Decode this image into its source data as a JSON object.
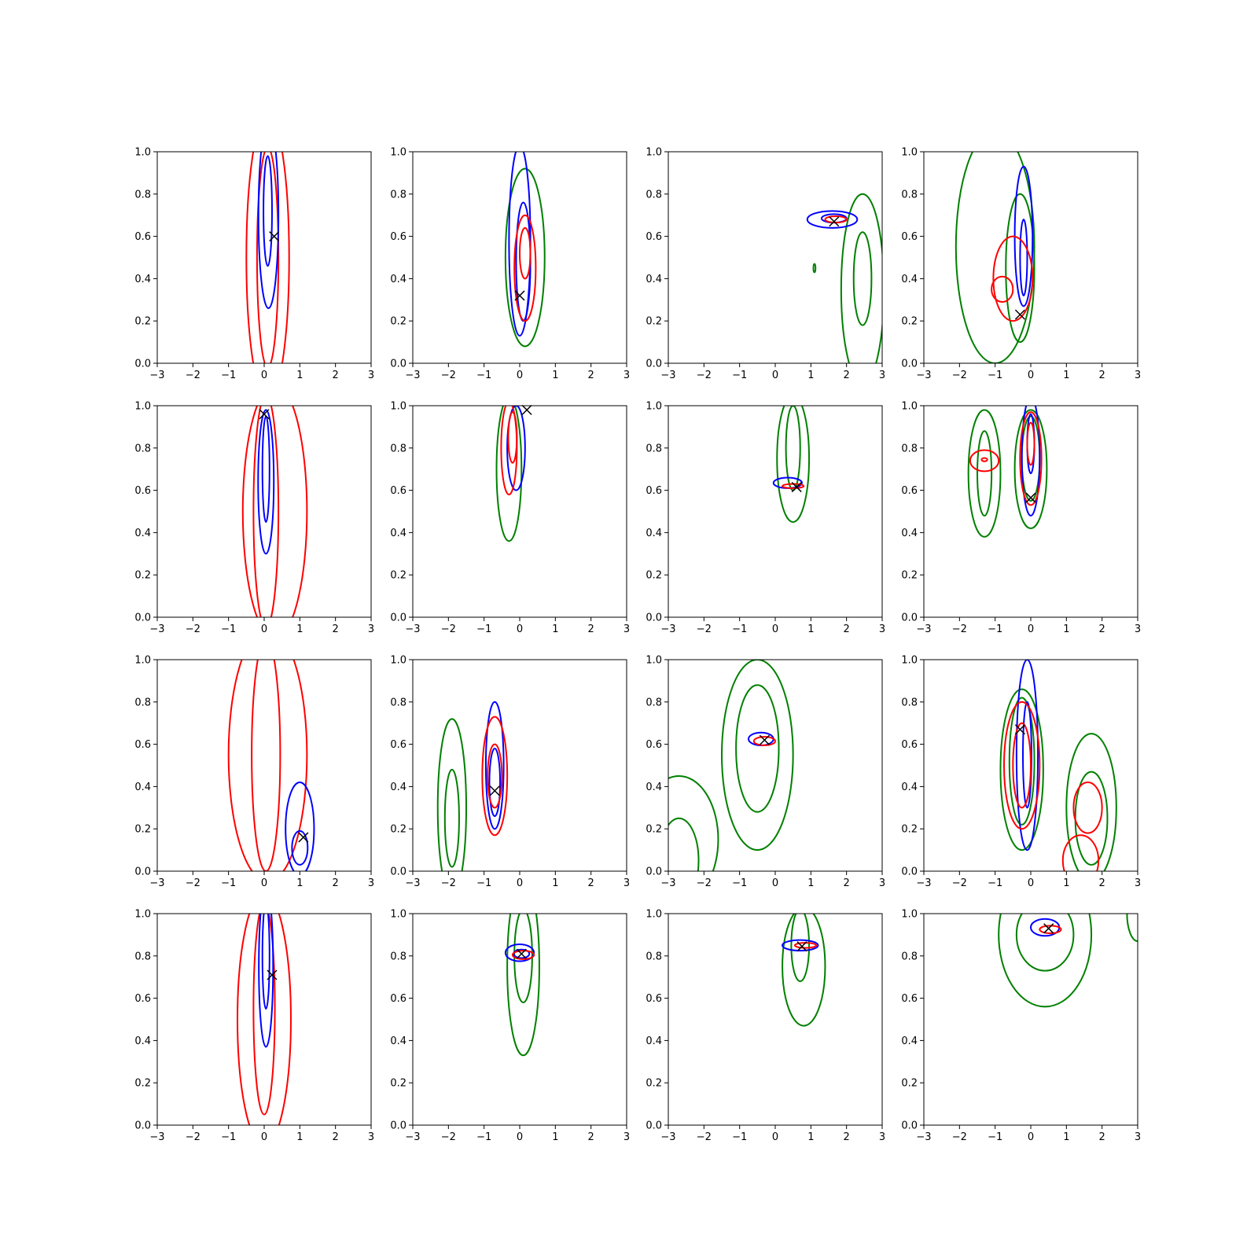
{
  "chart_data": {
    "type": "contour",
    "layout": {
      "rows": 4,
      "cols": 4
    },
    "xlim": [
      -3,
      3
    ],
    "ylim": [
      0,
      1
    ],
    "xticks": [
      "−3",
      "−2",
      "−1",
      "0",
      "1",
      "2",
      "3"
    ],
    "yticks": [
      "0.0",
      "0.2",
      "0.4",
      "0.6",
      "0.8",
      "1.0"
    ],
    "colors": {
      "red": "#ff0000",
      "blue": "#0000ff",
      "green": "#008000",
      "marker": "#000000"
    },
    "panels": [
      {
        "marker": [
          0.28,
          0.6
        ],
        "contours": [
          {
            "color": "red",
            "cx": 0.1,
            "cy": 0.5,
            "rx": 0.6,
            "ry": 0.68
          },
          {
            "color": "red",
            "cx": 0.1,
            "cy": 0.5,
            "rx": 0.3,
            "ry": 0.52
          },
          {
            "color": "blue",
            "cx": 0.12,
            "cy": 0.7,
            "rx": 0.28,
            "ry": 0.44
          },
          {
            "color": "blue",
            "cx": 0.1,
            "cy": 0.72,
            "rx": 0.12,
            "ry": 0.26
          }
        ]
      },
      {
        "marker": [
          0.0,
          0.32
        ],
        "contours": [
          {
            "color": "green",
            "cx": 0.15,
            "cy": 0.5,
            "rx": 0.55,
            "ry": 0.42
          },
          {
            "color": "blue",
            "cx": 0.0,
            "cy": 0.58,
            "rx": 0.3,
            "ry": 0.45
          },
          {
            "color": "blue",
            "cx": 0.1,
            "cy": 0.48,
            "rx": 0.2,
            "ry": 0.28
          },
          {
            "color": "red",
            "cx": 0.15,
            "cy": 0.45,
            "rx": 0.3,
            "ry": 0.25
          },
          {
            "color": "red",
            "cx": 0.15,
            "cy": 0.52,
            "rx": 0.15,
            "ry": 0.12
          }
        ]
      },
      {
        "marker": [
          1.65,
          0.67
        ],
        "contours": [
          {
            "color": "green",
            "cx": 2.45,
            "cy": 0.35,
            "rx": 0.6,
            "ry": 0.45
          },
          {
            "color": "green",
            "cx": 2.45,
            "cy": 0.4,
            "rx": 0.25,
            "ry": 0.22
          },
          {
            "color": "green",
            "cx": 1.1,
            "cy": 0.45,
            "rx": 0.03,
            "ry": 0.02
          },
          {
            "color": "blue",
            "cx": 1.6,
            "cy": 0.68,
            "rx": 0.7,
            "ry": 0.04
          },
          {
            "color": "blue",
            "cx": 1.65,
            "cy": 0.685,
            "rx": 0.35,
            "ry": 0.02
          },
          {
            "color": "red",
            "cx": 1.7,
            "cy": 0.68,
            "rx": 0.3,
            "ry": 0.015
          }
        ]
      },
      {
        "marker": [
          -0.3,
          0.23
        ],
        "contours": [
          {
            "color": "green",
            "cx": -1.0,
            "cy": 0.55,
            "rx": 1.1,
            "ry": 0.55
          },
          {
            "color": "green",
            "cx": -0.3,
            "cy": 0.45,
            "rx": 0.4,
            "ry": 0.35
          },
          {
            "color": "blue",
            "cx": -0.2,
            "cy": 0.6,
            "rx": 0.25,
            "ry": 0.33
          },
          {
            "color": "blue",
            "cx": -0.2,
            "cy": 0.5,
            "rx": 0.1,
            "ry": 0.18
          },
          {
            "color": "red",
            "cx": -0.5,
            "cy": 0.4,
            "rx": 0.55,
            "ry": 0.2
          },
          {
            "color": "red",
            "cx": -0.8,
            "cy": 0.35,
            "rx": 0.3,
            "ry": 0.06
          }
        ]
      },
      {
        "marker": [
          0.0,
          0.96
        ],
        "contours": [
          {
            "color": "red",
            "cx": 0.3,
            "cy": 0.5,
            "rx": 0.9,
            "ry": 0.6
          },
          {
            "color": "red",
            "cx": 0.05,
            "cy": 0.5,
            "rx": 0.35,
            "ry": 0.55
          },
          {
            "color": "blue",
            "cx": 0.05,
            "cy": 0.64,
            "rx": 0.22,
            "ry": 0.34
          },
          {
            "color": "blue",
            "cx": 0.05,
            "cy": 0.7,
            "rx": 0.1,
            "ry": 0.25
          }
        ]
      },
      {
        "marker": [
          0.2,
          0.98
        ],
        "contours": [
          {
            "color": "green",
            "cx": -0.3,
            "cy": 0.7,
            "rx": 0.35,
            "ry": 0.34
          },
          {
            "color": "blue",
            "cx": -0.1,
            "cy": 0.8,
            "rx": 0.25,
            "ry": 0.2
          },
          {
            "color": "red",
            "cx": -0.3,
            "cy": 0.8,
            "rx": 0.22,
            "ry": 0.22
          },
          {
            "color": "red",
            "cx": -0.2,
            "cy": 0.85,
            "rx": 0.12,
            "ry": 0.12
          }
        ]
      },
      {
        "marker": [
          0.6,
          0.615
        ],
        "contours": [
          {
            "color": "green",
            "cx": 0.5,
            "cy": 0.75,
            "rx": 0.45,
            "ry": 0.3
          },
          {
            "color": "green",
            "cx": 0.5,
            "cy": 0.8,
            "rx": 0.2,
            "ry": 0.2
          },
          {
            "color": "blue",
            "cx": 0.35,
            "cy": 0.635,
            "rx": 0.4,
            "ry": 0.025
          },
          {
            "color": "red",
            "cx": 0.5,
            "cy": 0.62,
            "rx": 0.3,
            "ry": 0.01
          }
        ]
      },
      {
        "marker": [
          0.0,
          0.565
        ],
        "contours": [
          {
            "color": "green",
            "cx": -1.3,
            "cy": 0.68,
            "rx": 0.45,
            "ry": 0.3
          },
          {
            "color": "green",
            "cx": -1.3,
            "cy": 0.68,
            "rx": 0.2,
            "ry": 0.2
          },
          {
            "color": "green",
            "cx": 0.0,
            "cy": 0.7,
            "rx": 0.45,
            "ry": 0.28
          },
          {
            "color": "green",
            "cx": 0.0,
            "cy": 0.75,
            "rx": 0.25,
            "ry": 0.2
          },
          {
            "color": "blue",
            "cx": 0.0,
            "cy": 0.76,
            "rx": 0.25,
            "ry": 0.28
          },
          {
            "color": "blue",
            "cx": 0.0,
            "cy": 0.82,
            "rx": 0.1,
            "ry": 0.14
          },
          {
            "color": "red",
            "cx": 0.0,
            "cy": 0.75,
            "rx": 0.3,
            "ry": 0.22
          },
          {
            "color": "red",
            "cx": 0.0,
            "cy": 0.82,
            "rx": 0.1,
            "ry": 0.1
          },
          {
            "color": "red",
            "cx": -1.3,
            "cy": 0.74,
            "rx": 0.4,
            "ry": 0.05
          },
          {
            "color": "red",
            "cx": -1.3,
            "cy": 0.745,
            "rx": 0.08,
            "ry": 0.008
          }
        ]
      },
      {
        "marker": [
          1.1,
          0.16
        ],
        "contours": [
          {
            "color": "red",
            "cx": 0.1,
            "cy": 0.55,
            "rx": 1.1,
            "ry": 0.6
          },
          {
            "color": "red",
            "cx": 0.05,
            "cy": 0.55,
            "rx": 0.4,
            "ry": 0.55
          },
          {
            "color": "blue",
            "cx": 1.0,
            "cy": 0.2,
            "rx": 0.4,
            "ry": 0.22
          },
          {
            "color": "blue",
            "cx": 1.0,
            "cy": 0.11,
            "rx": 0.22,
            "ry": 0.08
          }
        ]
      },
      {
        "marker": [
          -0.7,
          0.38
        ],
        "contours": [
          {
            "color": "green",
            "cx": -1.9,
            "cy": 0.3,
            "rx": 0.4,
            "ry": 0.42
          },
          {
            "color": "green",
            "cx": -1.9,
            "cy": 0.25,
            "rx": 0.2,
            "ry": 0.23
          },
          {
            "color": "blue",
            "cx": -0.7,
            "cy": 0.5,
            "rx": 0.25,
            "ry": 0.3
          },
          {
            "color": "blue",
            "cx": -0.7,
            "cy": 0.42,
            "rx": 0.15,
            "ry": 0.16
          },
          {
            "color": "red",
            "cx": -0.7,
            "cy": 0.45,
            "rx": 0.35,
            "ry": 0.28
          },
          {
            "color": "red",
            "cx": -0.7,
            "cy": 0.45,
            "rx": 0.2,
            "ry": 0.15
          }
        ]
      },
      {
        "marker": [
          -0.3,
          0.62
        ],
        "contours": [
          {
            "color": "green",
            "cx": -0.5,
            "cy": 0.55,
            "rx": 1.0,
            "ry": 0.45
          },
          {
            "color": "green",
            "cx": -0.5,
            "cy": 0.58,
            "rx": 0.6,
            "ry": 0.3
          },
          {
            "color": "green",
            "cx": -2.7,
            "cy": 0.15,
            "rx": 1.1,
            "ry": 0.3
          },
          {
            "color": "green",
            "cx": -2.7,
            "cy": 0.05,
            "rx": 0.55,
            "ry": 0.2
          },
          {
            "color": "blue",
            "cx": -0.4,
            "cy": 0.625,
            "rx": 0.35,
            "ry": 0.03
          },
          {
            "color": "red",
            "cx": -0.3,
            "cy": 0.615,
            "rx": 0.3,
            "ry": 0.02
          }
        ]
      },
      {
        "marker": [
          -0.3,
          0.67
        ],
        "contours": [
          {
            "color": "green",
            "cx": -0.25,
            "cy": 0.48,
            "rx": 0.6,
            "ry": 0.38
          },
          {
            "color": "green",
            "cx": -0.25,
            "cy": 0.52,
            "rx": 0.35,
            "ry": 0.3
          },
          {
            "color": "green",
            "cx": 1.7,
            "cy": 0.3,
            "rx": 0.7,
            "ry": 0.35
          },
          {
            "color": "green",
            "cx": 1.7,
            "cy": 0.25,
            "rx": 0.45,
            "ry": 0.22
          },
          {
            "color": "blue",
            "cx": -0.1,
            "cy": 0.55,
            "rx": 0.3,
            "ry": 0.45
          },
          {
            "color": "blue",
            "cx": -0.1,
            "cy": 0.55,
            "rx": 0.12,
            "ry": 0.25
          },
          {
            "color": "red",
            "cx": -0.25,
            "cy": 0.5,
            "rx": 0.5,
            "ry": 0.3
          },
          {
            "color": "red",
            "cx": -0.25,
            "cy": 0.5,
            "rx": 0.25,
            "ry": 0.2
          },
          {
            "color": "red",
            "cx": 1.6,
            "cy": 0.3,
            "rx": 0.4,
            "ry": 0.12
          },
          {
            "color": "red",
            "cx": 1.4,
            "cy": 0.05,
            "rx": 0.5,
            "ry": 0.12
          }
        ]
      },
      {
        "marker": [
          0.22,
          0.71
        ],
        "contours": [
          {
            "color": "red",
            "cx": 0.0,
            "cy": 0.5,
            "rx": 0.75,
            "ry": 0.6
          },
          {
            "color": "red",
            "cx": 0.0,
            "cy": 0.55,
            "rx": 0.3,
            "ry": 0.5
          },
          {
            "color": "blue",
            "cx": 0.05,
            "cy": 0.75,
            "rx": 0.2,
            "ry": 0.38
          },
          {
            "color": "blue",
            "cx": 0.05,
            "cy": 0.8,
            "rx": 0.1,
            "ry": 0.25
          }
        ]
      },
      {
        "marker": [
          0.05,
          0.81
        ],
        "contours": [
          {
            "color": "green",
            "cx": 0.1,
            "cy": 0.75,
            "rx": 0.45,
            "ry": 0.42
          },
          {
            "color": "green",
            "cx": 0.1,
            "cy": 0.8,
            "rx": 0.25,
            "ry": 0.22
          },
          {
            "color": "blue",
            "cx": 0.0,
            "cy": 0.815,
            "rx": 0.4,
            "ry": 0.04
          },
          {
            "color": "blue",
            "cx": 0.05,
            "cy": 0.81,
            "rx": 0.22,
            "ry": 0.02
          },
          {
            "color": "red",
            "cx": 0.1,
            "cy": 0.805,
            "rx": 0.3,
            "ry": 0.02
          }
        ]
      },
      {
        "marker": [
          0.75,
          0.845
        ],
        "contours": [
          {
            "color": "green",
            "cx": 0.8,
            "cy": 0.75,
            "rx": 0.6,
            "ry": 0.28
          },
          {
            "color": "green",
            "cx": 0.7,
            "cy": 0.85,
            "rx": 0.25,
            "ry": 0.17
          },
          {
            "color": "blue",
            "cx": 0.7,
            "cy": 0.85,
            "rx": 0.5,
            "ry": 0.025
          },
          {
            "color": "red",
            "cx": 0.85,
            "cy": 0.85,
            "rx": 0.3,
            "ry": 0.012
          }
        ]
      },
      {
        "marker": [
          0.5,
          0.93
        ],
        "contours": [
          {
            "color": "green",
            "cx": 0.4,
            "cy": 0.9,
            "rx": 1.3,
            "ry": 0.34
          },
          {
            "color": "green",
            "cx": 0.4,
            "cy": 0.9,
            "rx": 0.8,
            "ry": 0.17
          },
          {
            "color": "green",
            "cx": 3.0,
            "cy": 1.0,
            "rx": 0.3,
            "ry": 0.13
          },
          {
            "color": "blue",
            "cx": 0.4,
            "cy": 0.935,
            "rx": 0.4,
            "ry": 0.04
          },
          {
            "color": "red",
            "cx": 0.55,
            "cy": 0.925,
            "rx": 0.3,
            "ry": 0.018
          }
        ]
      }
    ]
  }
}
